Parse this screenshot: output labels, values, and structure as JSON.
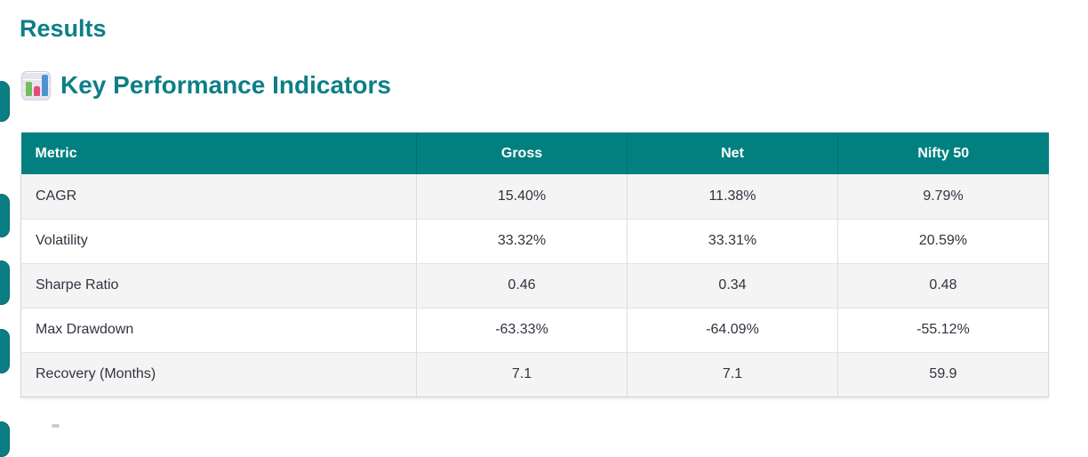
{
  "page": {
    "title": "Results"
  },
  "section": {
    "icon": "bar-chart-emoji",
    "title": "Key Performance Indicators"
  },
  "table": {
    "columns": [
      "Metric",
      "Gross",
      "Net",
      "Nifty 50"
    ],
    "rows": [
      [
        "CAGR",
        "15.40%",
        "11.38%",
        "9.79%"
      ],
      [
        "Volatility",
        "33.32%",
        "33.31%",
        "20.59%"
      ],
      [
        "Sharpe Ratio",
        "0.46",
        "0.34",
        "0.48"
      ],
      [
        "Max Drawdown",
        "-63.33%",
        "-64.09%",
        "-55.12%"
      ],
      [
        "Recovery (Months)",
        "7.1",
        "7.1",
        "59.9"
      ]
    ]
  },
  "colors": {
    "accent_teal": "#0d7f87",
    "table_header_bg": "#028080",
    "row_alt_bg": "#f4f4f4",
    "body_text": "#31333f",
    "side_pill": "#0a7e82"
  }
}
